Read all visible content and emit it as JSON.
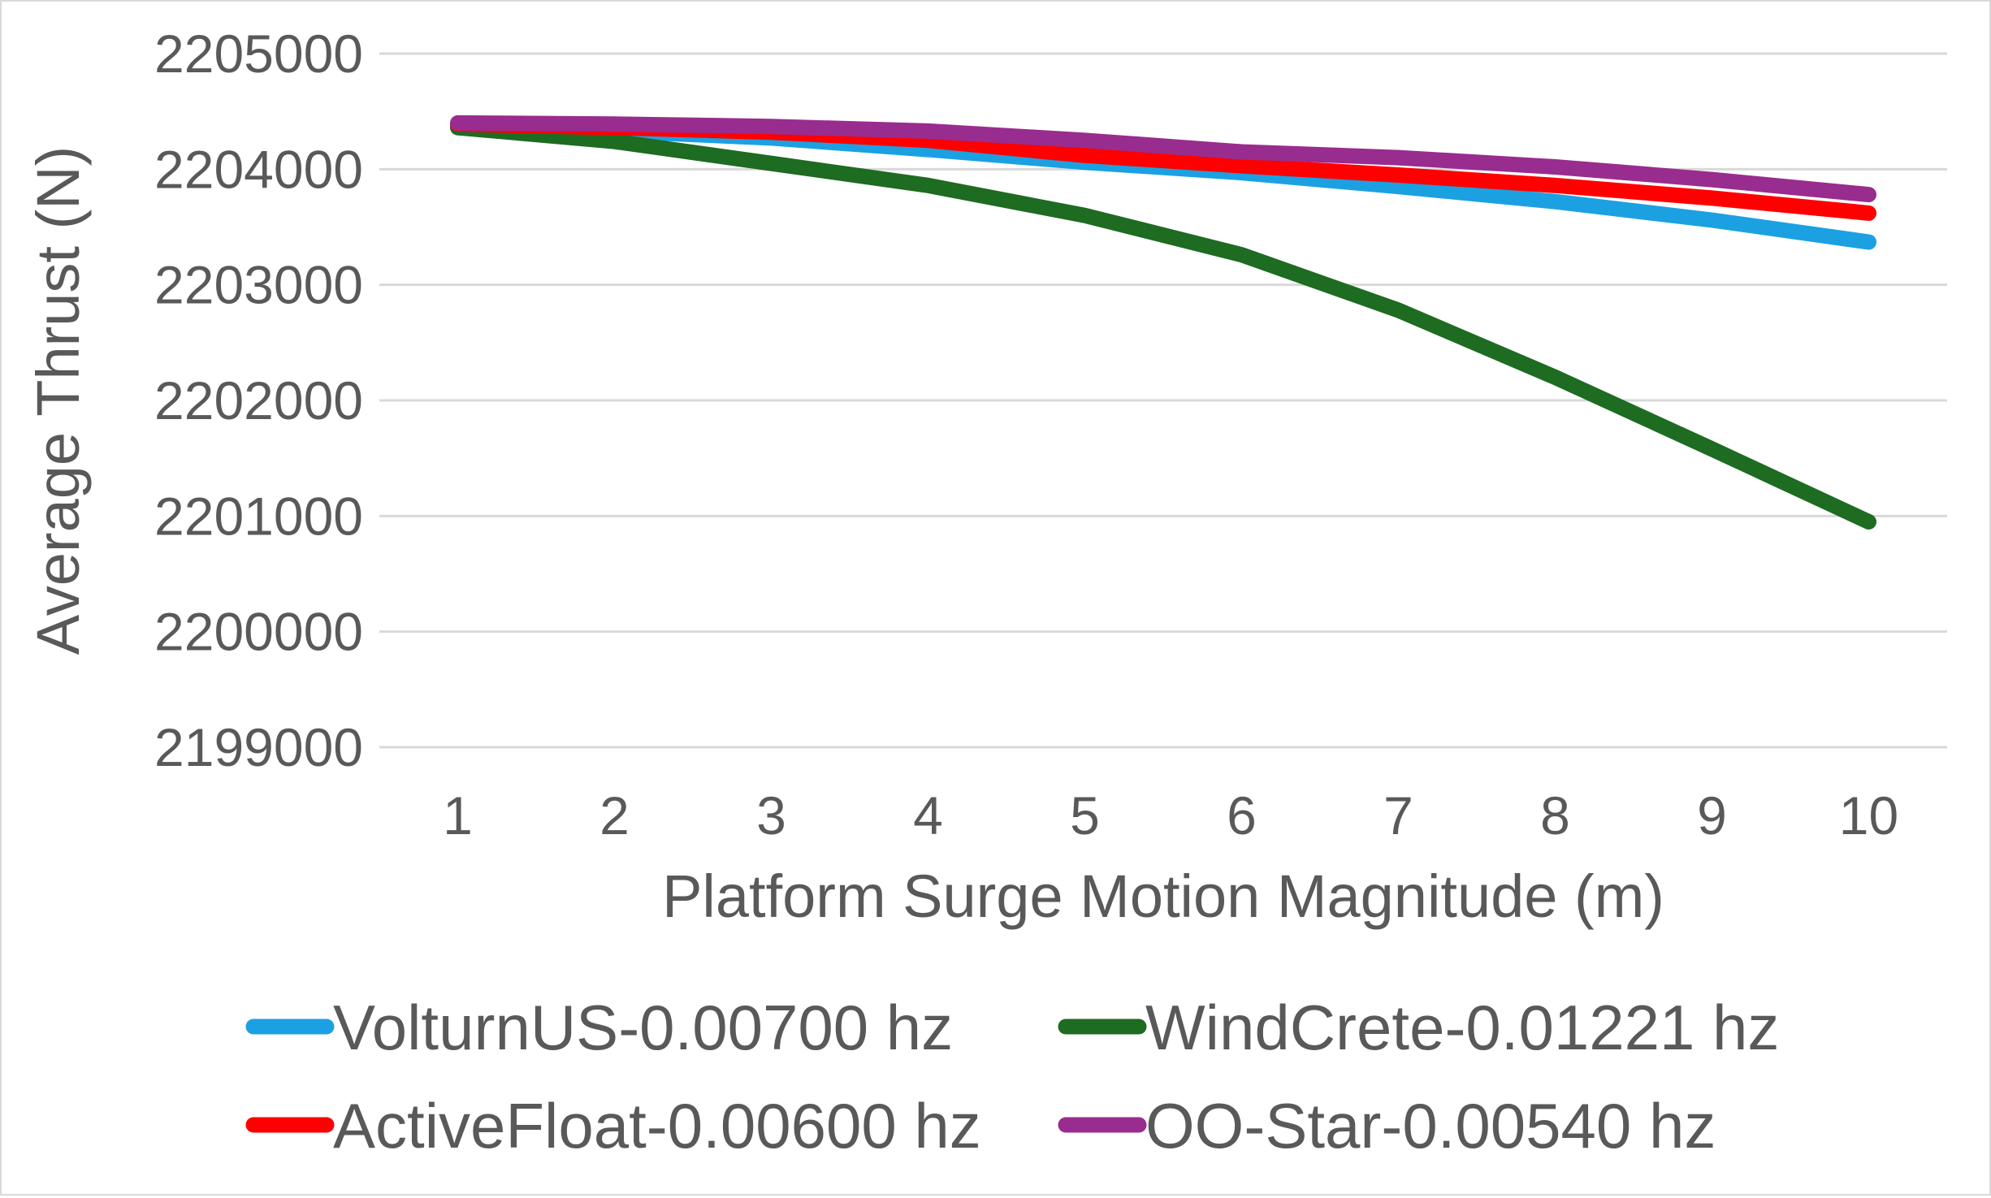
{
  "chart_data": {
    "type": "line",
    "title": "",
    "xlabel": "Platform Surge Motion Magnitude  (m)",
    "ylabel": "Average Thrust  (N)",
    "x": [
      1,
      2,
      3,
      4,
      5,
      6,
      7,
      8,
      9,
      10
    ],
    "ylim": [
      2199000,
      2205000
    ],
    "y_ticks": [
      "2199000",
      "2200000",
      "2201000",
      "2202000",
      "2203000",
      "2204000",
      "2205000"
    ],
    "grid": true,
    "legend_position": "bottom",
    "series": [
      {
        "name": "VolturnUS-0.00700 hz",
        "color": "#1ba1e2",
        "values": [
          2204370,
          2204330,
          2204270,
          2204170,
          2204060,
          2203970,
          2203850,
          2203720,
          2203560,
          2203370
        ]
      },
      {
        "name": "WindCrete-0.01221 hz",
        "color": "#1e6b22",
        "values": [
          2204360,
          2204240,
          2204050,
          2203860,
          2203600,
          2203260,
          2202780,
          2202200,
          2201580,
          2200950
        ]
      },
      {
        "name": "ActiveFloat-0.00600 hz",
        "color": "#ff0000",
        "values": [
          2204390,
          2204360,
          2204320,
          2204250,
          2204120,
          2204030,
          2203950,
          2203860,
          2203750,
          2203620
        ]
      },
      {
        "name": "OO-Star-0.00540 hz",
        "color": "#992c8f",
        "values": [
          2204400,
          2204390,
          2204370,
          2204330,
          2204250,
          2204150,
          2204100,
          2204020,
          2203910,
          2203780
        ]
      }
    ]
  }
}
